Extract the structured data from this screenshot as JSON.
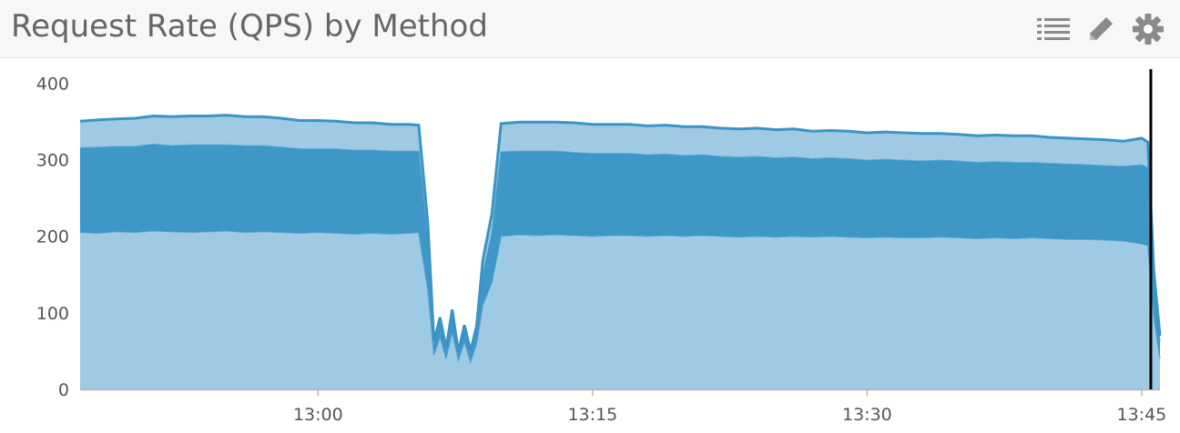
{
  "widget": {
    "title": "Request Rate (QPS) by Method",
    "icons": [
      "list-icon",
      "pencil-icon",
      "gear-icon"
    ]
  },
  "chart_data": {
    "type": "area",
    "stacked": true,
    "title": "Request Rate (QPS) by Method",
    "xlabel": "",
    "ylabel": "",
    "xlim": [
      "12:47",
      "13:46"
    ],
    "ylim": [
      0,
      430
    ],
    "yticks": [
      0,
      100,
      200,
      300,
      400
    ],
    "xticks": [
      "13:00",
      "13:15",
      "13:30",
      "13:45"
    ],
    "grid": false,
    "cursor_time": "13:45:30",
    "colors": [
      "#9ecae3",
      "#3f97c7",
      "#9ecae3"
    ],
    "line_color": "#3a94c6",
    "x": [
      "12:47",
      "12:48",
      "12:49",
      "12:50",
      "12:51",
      "12:52",
      "12:53",
      "12:54",
      "12:55",
      "12:56",
      "12:57",
      "12:58",
      "12:59",
      "13:00",
      "13:01",
      "13:02",
      "13:03",
      "13:04",
      "13:05",
      "13:05:30",
      "13:06",
      "13:06:20",
      "13:06:40",
      "13:07",
      "13:07:20",
      "13:07:40",
      "13:08",
      "13:08:20",
      "13:08:40",
      "13:09",
      "13:09:30",
      "13:10",
      "13:11",
      "13:12",
      "13:13",
      "13:14",
      "13:15",
      "13:16",
      "13:17",
      "13:18",
      "13:19",
      "13:20",
      "13:21",
      "13:22",
      "13:23",
      "13:24",
      "13:25",
      "13:26",
      "13:27",
      "13:28",
      "13:29",
      "13:30",
      "13:31",
      "13:32",
      "13:33",
      "13:34",
      "13:35",
      "13:36",
      "13:37",
      "13:38",
      "13:39",
      "13:40",
      "13:41",
      "13:42",
      "13:43",
      "13:44",
      "13:45",
      "13:45:20",
      "13:45:40",
      "13:46"
    ],
    "series": [
      {
        "values": [
          205,
          204,
          206,
          205,
          207,
          206,
          205,
          206,
          207,
          205,
          206,
          205,
          204,
          205,
          204,
          203,
          204,
          203,
          204,
          205,
          130,
          45,
          68,
          40,
          75,
          38,
          62,
          36,
          60,
          110,
          140,
          200,
          202,
          201,
          202,
          201,
          200,
          201,
          201,
          200,
          201,
          200,
          201,
          200,
          199,
          200,
          199,
          200,
          199,
          200,
          199,
          198,
          199,
          198,
          198,
          199,
          198,
          197,
          198,
          197,
          198,
          197,
          196,
          196,
          195,
          194,
          190,
          188,
          95,
          40
        ]
      },
      {
        "values": [
          110,
          112,
          111,
          112,
          113,
          112,
          114,
          113,
          112,
          113,
          112,
          111,
          110,
          109,
          110,
          109,
          108,
          108,
          107,
          106,
          65,
          12,
          18,
          10,
          20,
          8,
          15,
          10,
          16,
          40,
          65,
          110,
          109,
          110,
          109,
          108,
          108,
          107,
          107,
          106,
          106,
          105,
          105,
          104,
          104,
          104,
          103,
          103,
          102,
          102,
          102,
          101,
          101,
          101,
          100,
          100,
          100,
          99,
          99,
          99,
          98,
          98,
          98,
          97,
          97,
          97,
          103,
          101,
          45,
          22
        ]
      },
      {
        "values": [
          35,
          36,
          36,
          37,
          37,
          38,
          38,
          38,
          39,
          38,
          38,
          38,
          37,
          37,
          36,
          36,
          36,
          35,
          35,
          34,
          22,
          5,
          8,
          4,
          9,
          3,
          7,
          4,
          7,
          18,
          25,
          37,
          38,
          38,
          38,
          39,
          38,
          38,
          38,
          38,
          38,
          38,
          37,
          37,
          37,
          37,
          37,
          37,
          36,
          36,
          36,
          36,
          36,
          36,
          36,
          35,
          35,
          35,
          35,
          35,
          35,
          34,
          34,
          34,
          34,
          33,
          35,
          34,
          14,
          8
        ]
      }
    ]
  }
}
